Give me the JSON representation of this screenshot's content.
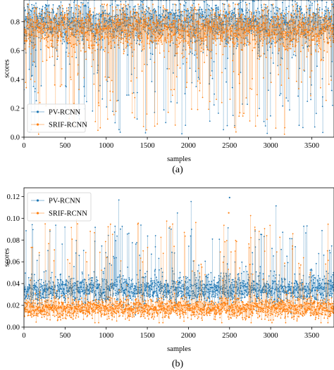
{
  "chart_data": [
    {
      "type": "scatter",
      "subplot_label": "(a)",
      "xlabel": "samples",
      "ylabel": "scores",
      "xlim": [
        0,
        3770
      ],
      "ylim": [
        0,
        0.95
      ],
      "x_ticks": [
        0,
        500,
        1000,
        1500,
        2000,
        2500,
        3000,
        3500
      ],
      "y_ticks": [
        0.0,
        0.2,
        0.4,
        0.6,
        0.8
      ],
      "x_tick_labels": [
        "0",
        "500",
        "1000",
        "1500",
        "2000",
        "2500",
        "3000",
        "3500"
      ],
      "y_tick_labels": [
        "0.0",
        "0.2",
        "0.4",
        "0.6",
        "0.8"
      ],
      "legend_position": "lower-left",
      "grid": false,
      "n_samples": 3770,
      "series": [
        {
          "name": "PV-RCNN",
          "color": "#1f77b4",
          "typical_range": [
            0.66,
            0.9
          ],
          "typical_center": 0.8,
          "min_outlier": 0.02,
          "max_value": 0.95
        },
        {
          "name": "SRIF-RCNN",
          "color": "#ff7f0e",
          "typical_range": [
            0.62,
            0.86
          ],
          "typical_center": 0.75,
          "min_outlier": 0.02,
          "max_value": 0.92
        }
      ]
    },
    {
      "type": "scatter",
      "subplot_label": "(b)",
      "xlabel": "samples",
      "ylabel": "scores",
      "xlim": [
        0,
        3770
      ],
      "ylim": [
        0,
        0.128
      ],
      "x_ticks": [
        0,
        500,
        1000,
        1500,
        2000,
        2500,
        3000,
        3500
      ],
      "y_ticks": [
        0.0,
        0.02,
        0.04,
        0.06,
        0.08,
        0.1,
        0.12
      ],
      "x_tick_labels": [
        "0",
        "500",
        "1000",
        "1500",
        "2000",
        "2500",
        "3000",
        "3500"
      ],
      "y_tick_labels": [
        "0.00",
        "0.02",
        "0.04",
        "0.06",
        "0.08",
        "0.10",
        "0.12"
      ],
      "legend_position": "upper-left",
      "grid": false,
      "n_samples": 3770,
      "series": [
        {
          "name": "PV-RCNN",
          "color": "#1f77b4",
          "typical_range": [
            0.025,
            0.045
          ],
          "typical_center": 0.034,
          "max_value": 0.119
        },
        {
          "name": "SRIF-RCNN",
          "color": "#ff7f0e",
          "typical_range": [
            0.01,
            0.025
          ],
          "typical_center": 0.017,
          "max_value": 0.105
        }
      ]
    }
  ]
}
